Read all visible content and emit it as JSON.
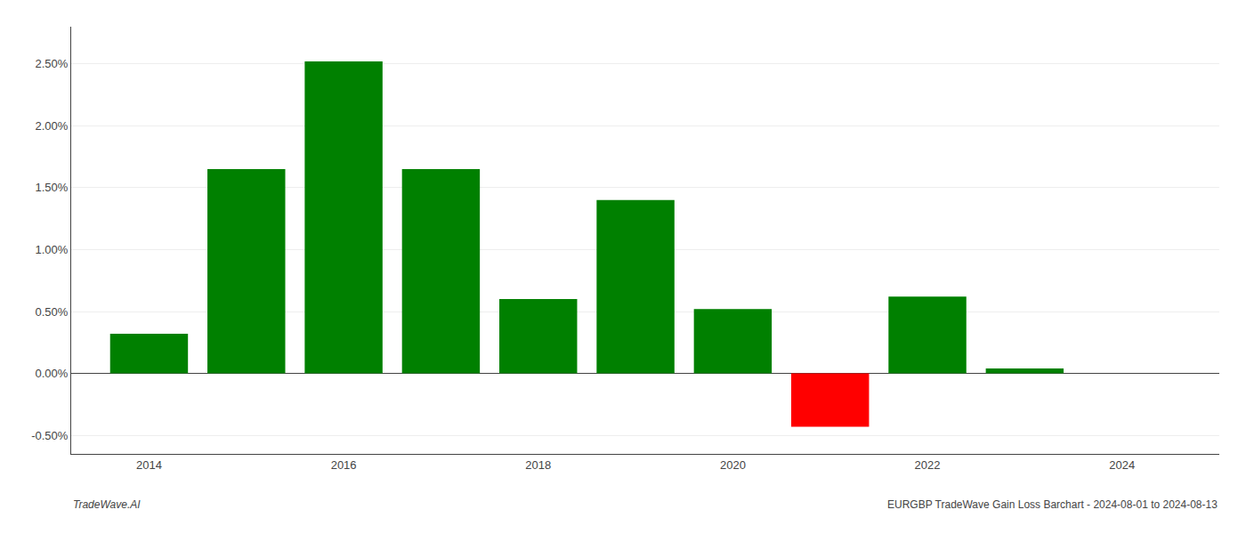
{
  "chart_data": {
    "type": "bar",
    "x": [
      2014,
      2015,
      2016,
      2017,
      2018,
      2019,
      2020,
      2021,
      2022,
      2023
    ],
    "values": [
      0.0032,
      0.0165,
      0.0252,
      0.0165,
      0.006,
      0.014,
      0.0052,
      -0.0043,
      0.0062,
      0.0004
    ],
    "colors": [
      "#008000",
      "#008000",
      "#008000",
      "#008000",
      "#008000",
      "#008000",
      "#008000",
      "#ff0000",
      "#008000",
      "#008000"
    ],
    "xlim": [
      2013.2,
      2025.0
    ],
    "xticks": [
      2014,
      2016,
      2018,
      2020,
      2022,
      2024
    ],
    "ylim": [
      -0.0065,
      0.028
    ],
    "yticks": [
      {
        "value": -0.005,
        "label": "-0.50%"
      },
      {
        "value": 0.0,
        "label": "0.00%"
      },
      {
        "value": 0.005,
        "label": "0.50%"
      },
      {
        "value": 0.01,
        "label": "1.00%"
      },
      {
        "value": 0.015,
        "label": "1.50%"
      },
      {
        "value": 0.02,
        "label": "2.00%"
      },
      {
        "value": 0.025,
        "label": "2.50%"
      }
    ],
    "grid": true,
    "annotations": [
      "TradeWave.AI",
      "EURGBP TradeWave Gain Loss Barchart - 2024-08-01 to 2024-08-13"
    ]
  }
}
